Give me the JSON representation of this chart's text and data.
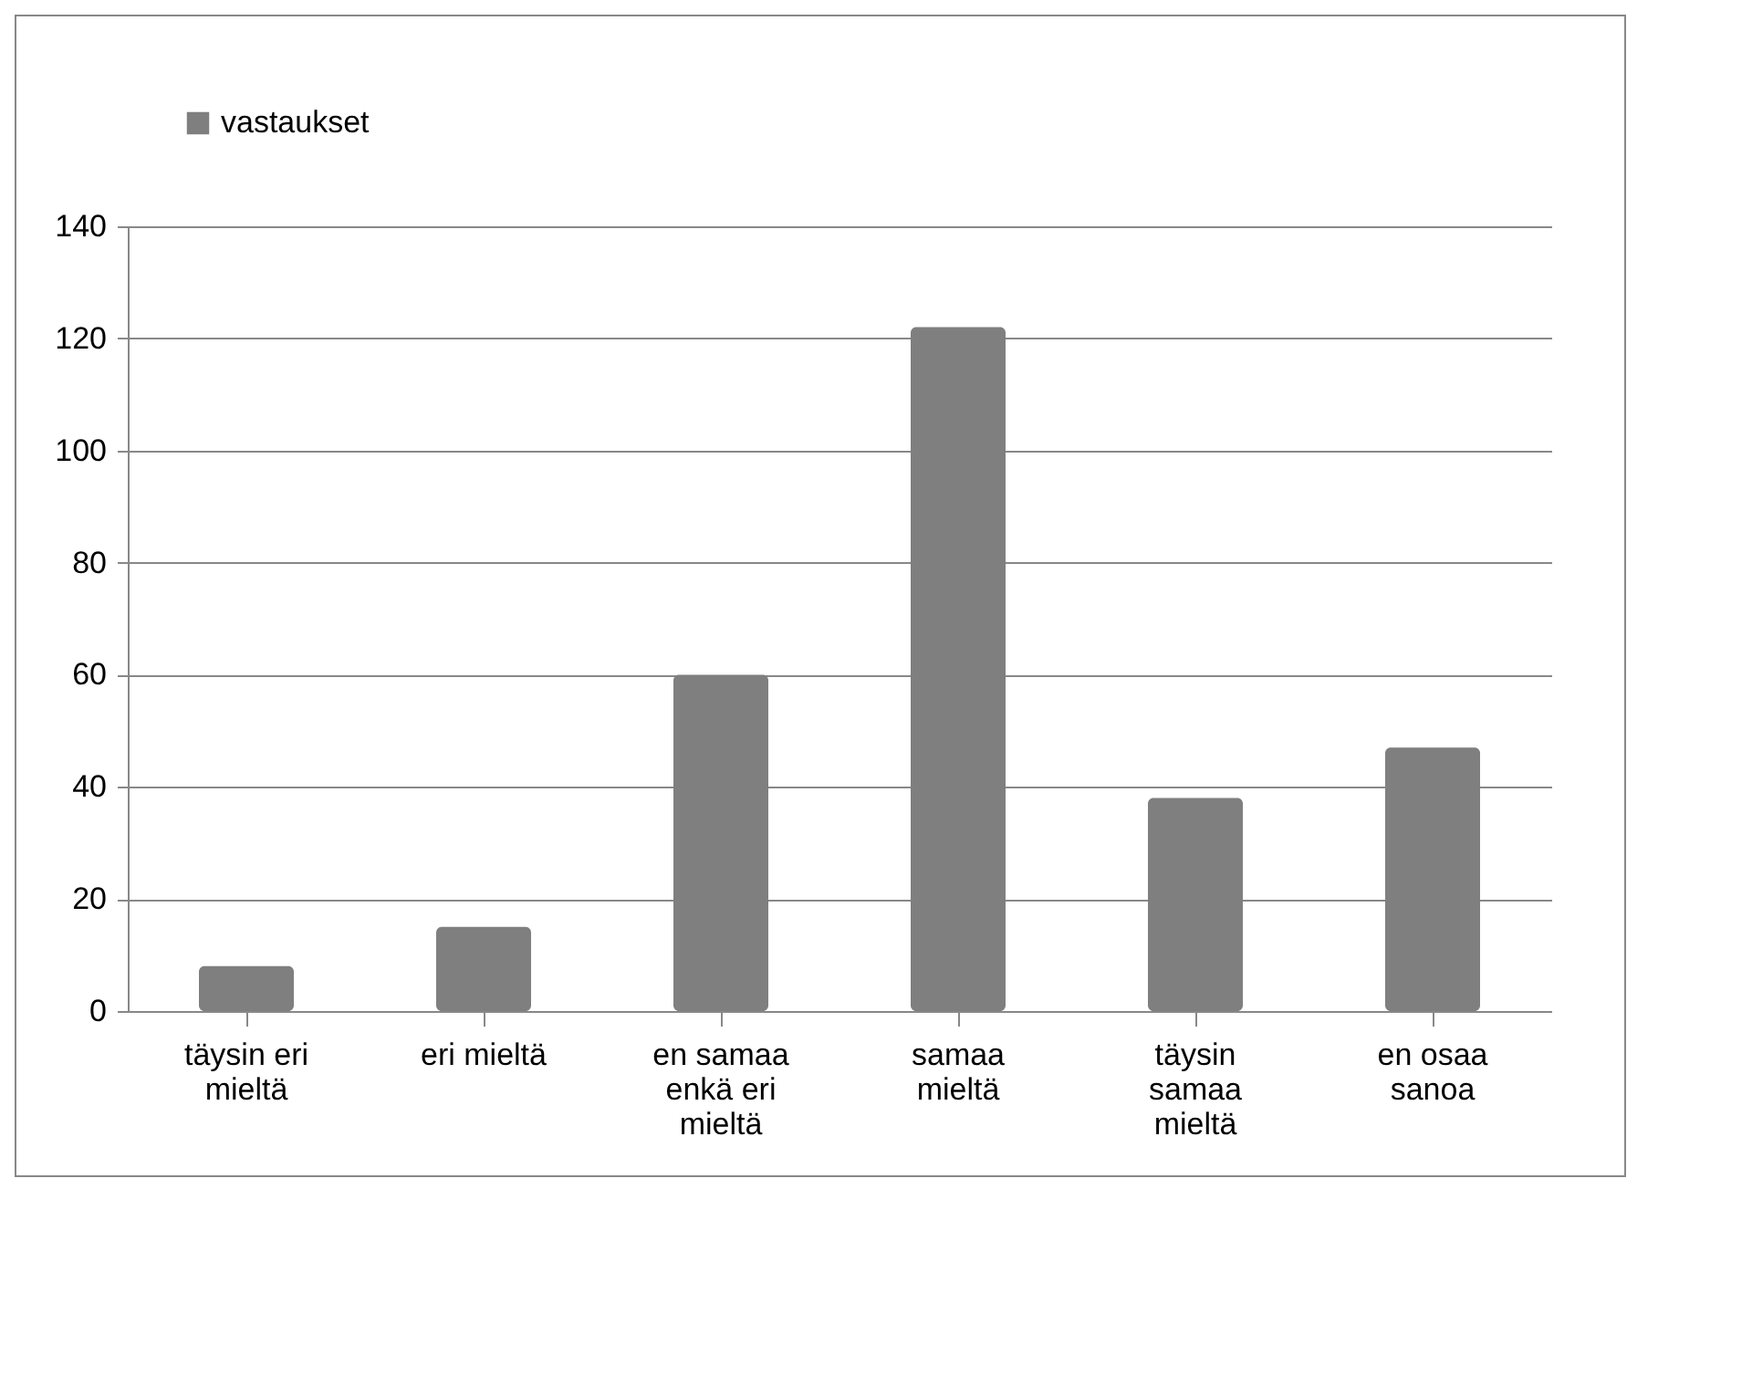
{
  "chart_data": {
    "type": "bar",
    "categories": [
      "täysin eri mieltä",
      "eri mieltä",
      "en samaa enkä eri mieltä",
      "samaa mieltä",
      "täysin samaa mieltä",
      "en osaa sanoa"
    ],
    "series": [
      {
        "name": "vastaukset",
        "color": "#7f7f7f",
        "values": [
          8,
          15,
          60,
          122,
          38,
          47
        ]
      }
    ],
    "ylim": [
      0,
      140
    ],
    "yticks": [
      0,
      20,
      40,
      60,
      80,
      100,
      120,
      140
    ],
    "grid": "y",
    "legend": "top"
  }
}
